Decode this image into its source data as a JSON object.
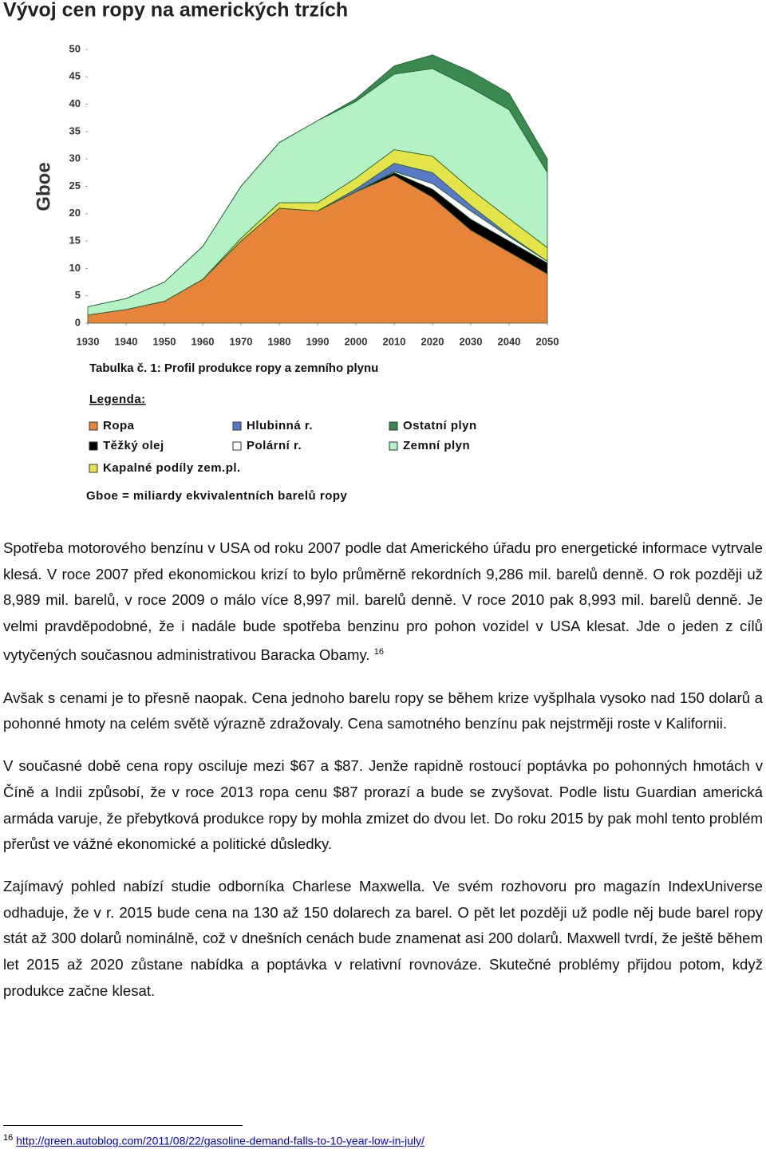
{
  "document": {
    "heading": "Vývoj cen ropy na amerických trzích",
    "paragraphs": [
      {
        "text": "Spotřeba motorového benzínu v USA od roku 2007 podle dat Amerického úřadu pro energetické informace vytrvale klesá. V roce 2007 před ekonomickou krizí to bylo průměrně rekordních 9,286 mil. barelů denně. O rok později už 8,989 mil. barelů, v roce 2009 o málo více 8,997 mil. barelů denně. V roce 2010 pak 8,993 mil. barelů denně. Je velmi pravděpodobné, že i nadále bude spotřeba benzinu pro pohon vozidel v USA klesat. Jde o jeden z cílů vytyčených současnou administrativou Baracka Obamy.",
        "footnote_ref": "16"
      },
      {
        "text": "Avšak s cenami je to přesně naopak. Cena jednoho barelu ropy se během krize vyšplhala vysoko nad 150 dolarů a pohonné hmoty na celém světě výrazně zdražovaly. Cena samotného benzínu pak nejstrměji roste v Kalifornii."
      },
      {
        "text": "V současné době cena ropy osciluje mezi $67 a $87. Jenže rapidně rostoucí poptávka po pohonných hmotách v Číně a Indii způsobí, že v roce 2013 ropa cenu $87 prorazí a bude se zvyšovat. Podle listu Guardian americká armáda varuje, že přebytková produkce ropy by mohla zmizet do dvou let. Do roku 2015 by pak mohl tento problém přerůst ve vážné ekonomické a politické důsledky."
      },
      {
        "text": "Zajímavý pohled nabízí studie odborníka Charlese Maxwella. Ve svém rozhovoru pro magazín IndexUniverse odhaduje, že v r. 2015 bude cena na 130 až 150 dolarech za barel. O pět let později už podle něj bude barel ropy stát až 300 dolarů nominálně, což v dnešních cenách bude znamenat asi 200 dolarů. Maxwell tvrdí, že ještě během let 2015 až 2020 zůstane nabídka a poptávka v relativní rovnováze. Skutečné problémy přijdou potom, když produkce začne klesat."
      }
    ],
    "footnote": {
      "number": "16",
      "text": "http://green.autoblog.com/2011/08/22/gasoline-demand-falls-to-10-year-low-in-july/"
    }
  },
  "chart_data": {
    "type": "stacked_area",
    "title": "Tabulka č. 1: Profil produkce ropy a zemního plynu",
    "y_label": "Gboe",
    "legend_title": "Legenda:",
    "note": "Gboe = miliardy ekvivalentních barelů ropy",
    "x": [
      1930,
      1940,
      1950,
      1960,
      1970,
      1980,
      1990,
      2000,
      2010,
      2020,
      2030,
      2040,
      2050
    ],
    "xlim": [
      1930,
      2050
    ],
    "xticks": [
      1930,
      1940,
      1950,
      1960,
      1970,
      1980,
      1990,
      2000,
      2010,
      2020,
      2030,
      2040,
      2050
    ],
    "ylim": [
      0,
      50
    ],
    "yticks": [
      0,
      5,
      10,
      15,
      20,
      25,
      30,
      35,
      40,
      45,
      50
    ],
    "series": [
      {
        "name": "Ropa",
        "color": "#e8843a",
        "values": [
          1.5,
          2.5,
          4,
          8,
          15,
          21,
          20.5,
          24,
          27,
          23,
          17,
          13,
          9
        ]
      },
      {
        "name": "Těžký olej",
        "color": "#000000",
        "values": [
          0,
          0,
          0,
          0,
          0,
          0,
          0,
          0,
          0.5,
          1.5,
          2,
          2,
          2
        ]
      },
      {
        "name": "Polární r.",
        "color": "#ffffff",
        "values": [
          0,
          0,
          0,
          0,
          0,
          0,
          0,
          0,
          0.2,
          1,
          1.5,
          0.8,
          0.3
        ]
      },
      {
        "name": "Hlubinná r.",
        "color": "#5a78c8",
        "values": [
          0,
          0,
          0,
          0,
          0,
          0,
          0,
          0.5,
          1.5,
          2,
          1,
          0.3,
          0
        ]
      },
      {
        "name": "Kapalné podíly zem.pl.",
        "color": "#e4e448",
        "values": [
          0,
          0,
          0,
          0,
          0.5,
          1,
          1.5,
          2,
          2.5,
          3,
          3,
          3,
          2.5
        ]
      },
      {
        "name": "Zemní plyn",
        "color": "#b2f2c4",
        "values": [
          1.5,
          2,
          3.5,
          6,
          9.5,
          11,
          15,
          14,
          13.8,
          16,
          18.5,
          19.9,
          13.7
        ]
      },
      {
        "name": "Ostatní plyn",
        "color": "#3a8a50",
        "values": [
          0,
          0,
          0,
          0,
          0,
          0,
          0,
          0.5,
          1.5,
          2.5,
          3,
          3,
          2.5
        ]
      }
    ]
  }
}
